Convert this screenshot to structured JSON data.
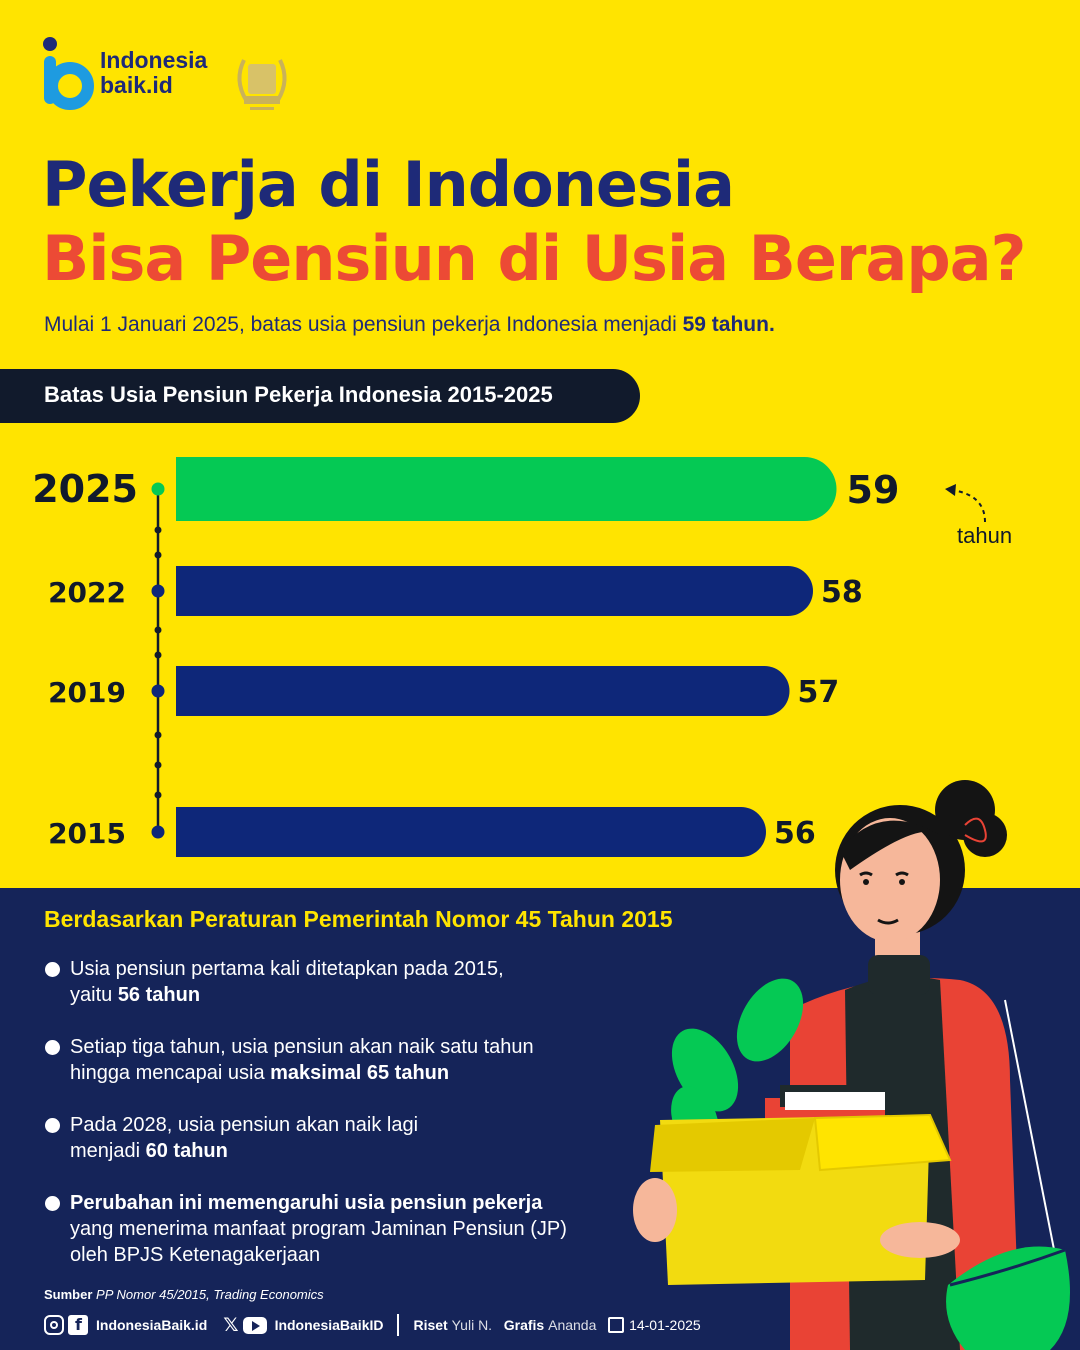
{
  "brand": {
    "name_line1": "Indonesia",
    "name_line2": "baik.id",
    "award": "WSIS PRIZES 2018 WINNER",
    "colors": {
      "navy": "#1E2A78",
      "red": "#EC4A35",
      "yellow": "#FFE400",
      "green": "#05C954",
      "bar_navy": "#0E2779",
      "dark": "#111A2C",
      "bottom_bg": "#152459"
    }
  },
  "header": {
    "title_line1": "Pekerja di Indonesia",
    "title_line2": "Bisa Pensiun di Usia Berapa?",
    "subtitle_prefix": "Mulai 1 Januari 2025, batas usia pensiun pekerja Indonesia menjadi ",
    "subtitle_bold": "59 tahun."
  },
  "section_label": "Batas Usia Pensiun Pekerja Indonesia 2015-2025",
  "chart_data": {
    "type": "bar",
    "orientation": "horizontal",
    "title": "Batas Usia Pensiun Pekerja Indonesia 2015-2025",
    "categories": [
      "2025",
      "2022",
      "2019",
      "2015"
    ],
    "values": [
      59,
      58,
      57,
      56
    ],
    "highlight": "2025",
    "unit_annotation": "tahun",
    "grid": false,
    "legend": "none"
  },
  "regulation": {
    "title": "Berdasarkan Peraturan Pemerintah Nomor 45 Tahun 2015",
    "bullets": [
      {
        "line1": "Usia pensiun pertama kali ditetapkan pada 2015,",
        "line2_prefix": "yaitu ",
        "line2_bold": "56 tahun",
        "line2_suffix": ""
      },
      {
        "line1": "Setiap tiga tahun, usia pensiun akan naik satu tahun",
        "line2_prefix": "hingga mencapai usia ",
        "line2_bold": "maksimal 65 tahun",
        "line2_suffix": ""
      },
      {
        "line1": "Pada 2028, usia pensiun akan naik lagi",
        "line2_prefix": "menjadi ",
        "line2_bold": "60 tahun",
        "line2_suffix": ""
      },
      {
        "line1_bold": "Perubahan ini memengaruhi usia pensiun pekerja",
        "line2": "yang menerima manfaat program Jaminan Pensiun (JP)",
        "line3": "oleh BPJS Ketenagakerjaan"
      }
    ]
  },
  "footer": {
    "source_label": "Sumber",
    "source_text": "PP Nomor 45/2015, Trading Economics",
    "handle1": "IndonesiaBaik.id",
    "handle2": "IndonesiaBaikID",
    "riset_label": "Riset",
    "riset_name": "Yuli N.",
    "grafis_label": "Grafis",
    "grafis_name": "Ananda",
    "date": "14-01-2025",
    "icons": [
      "instagram-icon",
      "facebook-icon",
      "x-icon",
      "youtube-icon",
      "calendar-icon"
    ]
  }
}
